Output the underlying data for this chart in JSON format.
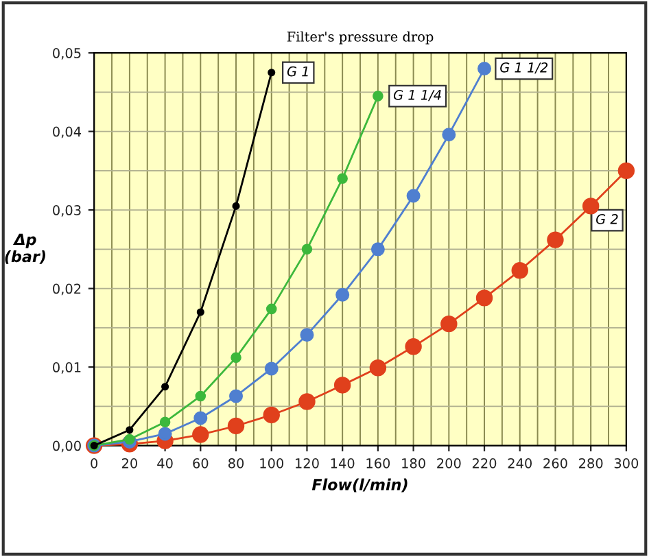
{
  "chart_data": {
    "type": "line",
    "title": "Filter's pressure drop",
    "xlabel": "Flow(l/min)",
    "ylabel": "Δp\n(bar)",
    "x": [
      0,
      20,
      40,
      60,
      80,
      100,
      120,
      140,
      160,
      180,
      200,
      220,
      240,
      260,
      280,
      300
    ],
    "series": [
      {
        "name": "G 1",
        "color": "#000000",
        "values": [
          0,
          0.002,
          0.0075,
          0.017,
          0.0305,
          0.0475,
          null,
          null,
          null,
          null,
          null,
          null,
          null,
          null,
          null,
          null
        ]
      },
      {
        "name": "G 1 1/4",
        "color": "#3cb83c",
        "values": [
          0,
          0.0008,
          0.003,
          0.0063,
          0.0112,
          0.0174,
          0.025,
          0.034,
          0.0445,
          null,
          null,
          null,
          null,
          null,
          null,
          null
        ]
      },
      {
        "name": "G 1 1/2",
        "color": "#4f7fd0",
        "values": [
          0,
          0.0005,
          0.0015,
          0.0035,
          0.0063,
          0.0098,
          0.0141,
          0.0192,
          0.025,
          0.0318,
          0.0396,
          0.048,
          null,
          null,
          null,
          null
        ]
      },
      {
        "name": "G 2",
        "color": "#e0401c",
        "values": [
          0,
          0.0002,
          0.0006,
          0.0014,
          0.0025,
          0.0039,
          0.0056,
          0.0077,
          0.0099,
          0.0126,
          0.0155,
          0.0188,
          0.0223,
          0.0262,
          0.0305,
          0.035
        ]
      }
    ],
    "xlim": [
      0,
      300
    ],
    "xticks": [
      0,
      20,
      40,
      60,
      80,
      100,
      120,
      140,
      160,
      180,
      200,
      220,
      240,
      260,
      280,
      300
    ],
    "ylim": [
      0,
      0.05
    ],
    "yticks": [
      {
        "value": 0,
        "label": "0,00"
      },
      {
        "value": 0.01,
        "label": "0,01"
      },
      {
        "value": 0.02,
        "label": "0,02"
      },
      {
        "value": 0.03,
        "label": "0,03"
      },
      {
        "value": 0.04,
        "label": "0,04"
      },
      {
        "value": 0.05,
        "label": "0,05"
      }
    ],
    "grid": true,
    "legend": false,
    "marker": "circle",
    "line_style": "solid"
  }
}
